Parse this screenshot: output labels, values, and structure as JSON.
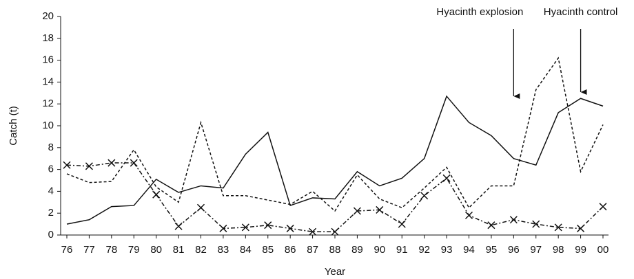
{
  "chart_data": {
    "type": "line",
    "x_label": "Year",
    "y_label": "Catch (t)",
    "categories": [
      "76",
      "77",
      "78",
      "79",
      "80",
      "81",
      "82",
      "83",
      "84",
      "85",
      "86",
      "87",
      "88",
      "89",
      "90",
      "91",
      "92",
      "93",
      "94",
      "95",
      "96",
      "97",
      "98",
      "99",
      "00"
    ],
    "series": [
      {
        "color": "#111111",
        "dash": "none",
        "marker": "none",
        "values": [
          1.0,
          1.4,
          2.6,
          2.7,
          5.1,
          3.9,
          4.5,
          4.3,
          7.4,
          9.4,
          2.7,
          3.4,
          3.3,
          5.8,
          4.5,
          5.2,
          7.0,
          12.7,
          10.3,
          9.1,
          7.0,
          6.4,
          11.2,
          12.5,
          11.8
        ]
      },
      {
        "color": "#111111",
        "dash": "4 3",
        "marker": "none",
        "values": [
          5.6,
          4.8,
          4.9,
          7.8,
          4.4,
          3.0,
          10.3,
          3.6,
          3.6,
          3.2,
          2.8,
          4.0,
          2.2,
          5.5,
          3.3,
          2.5,
          4.3,
          6.2,
          2.5,
          4.5,
          4.5,
          13.3,
          16.2,
          5.8,
          10.1
        ]
      },
      {
        "color": "#111111",
        "dash": "6 3 2 3",
        "marker": "x",
        "values": [
          6.4,
          6.3,
          6.6,
          6.6,
          3.7,
          0.8,
          2.5,
          0.6,
          0.7,
          0.9,
          0.6,
          0.3,
          0.3,
          2.2,
          2.3,
          1.0,
          3.6,
          5.2,
          1.8,
          0.9,
          1.4,
          1.0,
          0.7,
          0.6,
          2.6
        ]
      }
    ],
    "ylim": [
      0,
      20
    ],
    "yticks": [
      0,
      2,
      4,
      6,
      8,
      10,
      12,
      14,
      16,
      18,
      20
    ],
    "grid": false,
    "annotations": [
      {
        "text": "Hyacinth explosion",
        "x": "96"
      },
      {
        "text": "Hyacinth control",
        "x": "99"
      }
    ]
  }
}
